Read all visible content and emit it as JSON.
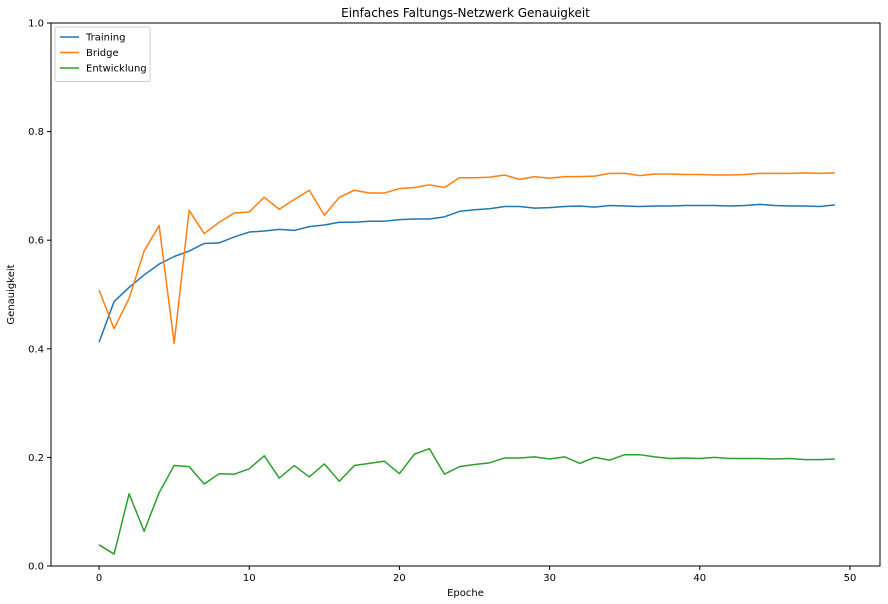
{
  "chart_data": {
    "type": "line",
    "title": "Einfaches Faltungs-Netzwerk Genauigkeit",
    "xlabel": "Epoche",
    "ylabel": "Genauigkeit",
    "xlim": [
      -3.2,
      52
    ],
    "ylim": [
      0,
      1.0
    ],
    "xticks": [
      0,
      10,
      20,
      30,
      40,
      50
    ],
    "yticks": [
      0.0,
      0.2,
      0.4,
      0.6,
      0.8,
      1.0
    ],
    "xtick_labels": [
      "0",
      "10",
      "20",
      "30",
      "40",
      "50"
    ],
    "ytick_labels": [
      "0.0",
      "0.2",
      "0.4",
      "0.6",
      "0.8",
      "1.0"
    ],
    "grid": false,
    "legend_position": "top-left",
    "x": [
      0,
      1,
      2,
      3,
      4,
      5,
      6,
      7,
      8,
      9,
      10,
      11,
      12,
      13,
      14,
      15,
      16,
      17,
      18,
      19,
      20,
      21,
      22,
      23,
      24,
      25,
      26,
      27,
      28,
      29,
      30,
      31,
      32,
      33,
      34,
      35,
      36,
      37,
      38,
      39,
      40,
      41,
      42,
      43,
      44,
      45,
      46,
      47,
      48,
      49
    ],
    "series": [
      {
        "name": "Training",
        "color": "#1f77b4",
        "values": [
          0.412,
          0.487,
          0.513,
          0.536,
          0.556,
          0.57,
          0.58,
          0.594,
          0.595,
          0.606,
          0.615,
          0.617,
          0.62,
          0.618,
          0.625,
          0.628,
          0.633,
          0.633,
          0.635,
          0.635,
          0.638,
          0.639,
          0.639,
          0.643,
          0.653,
          0.656,
          0.658,
          0.662,
          0.662,
          0.659,
          0.66,
          0.662,
          0.663,
          0.661,
          0.664,
          0.663,
          0.662,
          0.663,
          0.663,
          0.664,
          0.664,
          0.664,
          0.663,
          0.664,
          0.666,
          0.664,
          0.663,
          0.663,
          0.662,
          0.665
        ]
      },
      {
        "name": "Bridge",
        "color": "#ff7f0e",
        "values": [
          0.508,
          0.437,
          0.493,
          0.58,
          0.627,
          0.41,
          0.655,
          0.612,
          0.633,
          0.65,
          0.652,
          0.679,
          0.657,
          0.675,
          0.692,
          0.646,
          0.679,
          0.692,
          0.687,
          0.687,
          0.695,
          0.697,
          0.702,
          0.697,
          0.715,
          0.715,
          0.716,
          0.72,
          0.712,
          0.717,
          0.714,
          0.717,
          0.717,
          0.718,
          0.723,
          0.723,
          0.719,
          0.722,
          0.722,
          0.721,
          0.721,
          0.72,
          0.72,
          0.721,
          0.723,
          0.723,
          0.723,
          0.724,
          0.723,
          0.724
        ]
      },
      {
        "name": "Entwicklung",
        "color": "#2ca02c",
        "values": [
          0.039,
          0.022,
          0.133,
          0.064,
          0.135,
          0.185,
          0.183,
          0.151,
          0.17,
          0.169,
          0.179,
          0.203,
          0.162,
          0.185,
          0.164,
          0.188,
          0.156,
          0.185,
          0.189,
          0.193,
          0.17,
          0.206,
          0.216,
          0.169,
          0.183,
          0.187,
          0.19,
          0.199,
          0.199,
          0.201,
          0.197,
          0.201,
          0.189,
          0.2,
          0.195,
          0.205,
          0.205,
          0.201,
          0.198,
          0.199,
          0.198,
          0.2,
          0.198,
          0.198,
          0.198,
          0.197,
          0.198,
          0.196,
          0.196,
          0.197
        ]
      }
    ]
  }
}
